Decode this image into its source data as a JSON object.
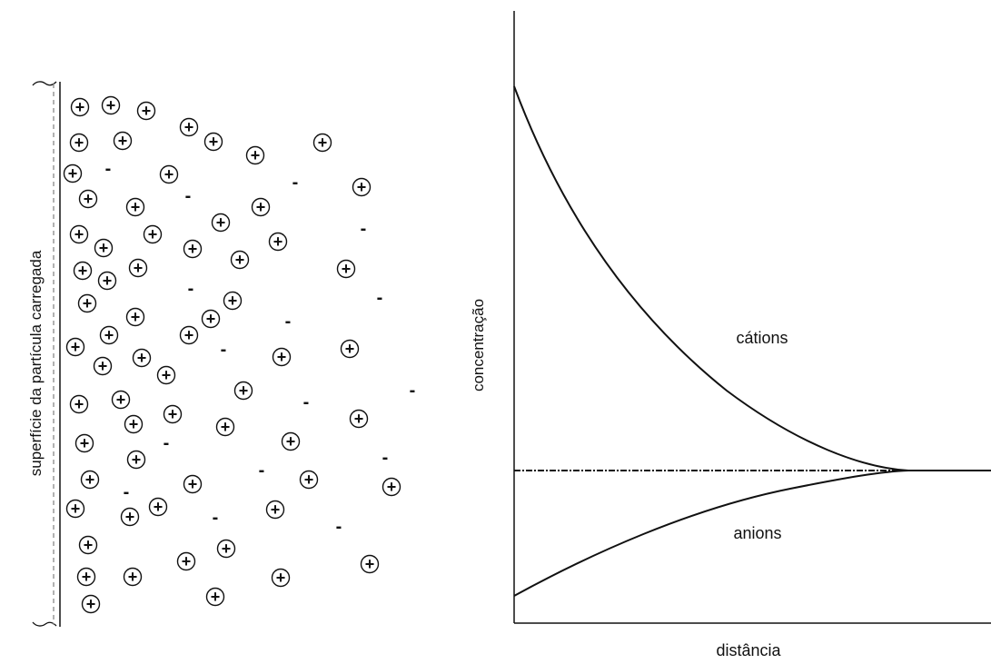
{
  "left_panel": {
    "surface_label": "superfície da partícula carregada",
    "cation_symbol": "+",
    "anion_symbol": "-"
  },
  "right_panel": {
    "y_label": "concentração",
    "x_label": "distância",
    "curve_labels": {
      "cations": "cátions",
      "anions": "anions"
    }
  },
  "colors": {
    "ink": "#111111",
    "dash": "#888888"
  }
}
